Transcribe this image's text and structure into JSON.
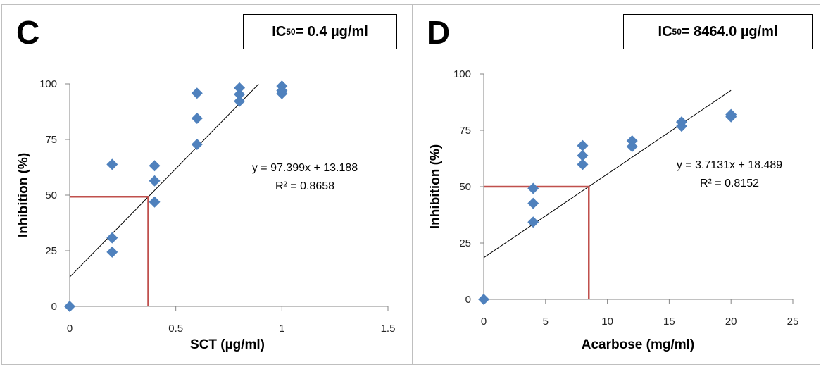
{
  "chart_data": [
    {
      "panel": "C",
      "type": "scatter",
      "ic50": {
        "prefix": "IC",
        "sub": "50",
        "value": " = 0.4 µg/ml"
      },
      "xlabel": "SCT (µg/ml)",
      "ylabel": "Inhibition (%)",
      "xlim": [
        0,
        1.5
      ],
      "ylim": [
        0,
        100
      ],
      "xticks": [
        "0",
        "0.5",
        "1",
        "1.5"
      ],
      "yticks": [
        "0",
        "25",
        "50",
        "75",
        "100"
      ],
      "grid": false,
      "marker_color": "#4f81bd",
      "points": [
        [
          0,
          0
        ],
        [
          0.2,
          63.8
        ],
        [
          0.2,
          30.8
        ],
        [
          0.2,
          24.4
        ],
        [
          0.4,
          63.2
        ],
        [
          0.4,
          56.4
        ],
        [
          0.4,
          46.9
        ],
        [
          0.6,
          95.8
        ],
        [
          0.6,
          84.5
        ],
        [
          0.6,
          72.8
        ],
        [
          0.8,
          98.2
        ],
        [
          0.8,
          95.3
        ],
        [
          0.8,
          92.2
        ],
        [
          1.0,
          99.0
        ],
        [
          1.0,
          97.0
        ],
        [
          1.0,
          95.6
        ]
      ],
      "trendline": {
        "slope": 97.399,
        "intercept": 13.188,
        "x_range": [
          0,
          0.89
        ]
      },
      "equation": "y = 97.399x + 13.188",
      "r2": "R² = 0.8658",
      "ic50_line": {
        "x": 0.37,
        "y": 49.3,
        "color": "#c0504d"
      }
    },
    {
      "panel": "D",
      "type": "scatter",
      "ic50": {
        "prefix": "IC",
        "sub": "50",
        "value": " = 8464.0 µg/ml"
      },
      "xlabel": "Acarbose  (mg/ml)",
      "ylabel": "Inhibition (%)",
      "xlim": [
        0,
        25
      ],
      "ylim": [
        0,
        100
      ],
      "xticks": [
        "0",
        "5",
        "10",
        "15",
        "20",
        "25"
      ],
      "yticks": [
        "0",
        "25",
        "50",
        "75",
        "100"
      ],
      "grid": false,
      "marker_color": "#4f81bd",
      "points": [
        [
          0,
          0
        ],
        [
          4,
          49.2
        ],
        [
          4,
          42.6
        ],
        [
          4,
          34.3
        ],
        [
          8,
          68.2
        ],
        [
          8,
          63.8
        ],
        [
          8,
          59.9
        ],
        [
          12,
          70.3
        ],
        [
          12,
          67.8
        ],
        [
          16,
          78.7
        ],
        [
          16,
          76.8
        ],
        [
          20,
          82.0
        ],
        [
          20,
          81.0
        ]
      ],
      "trendline": {
        "slope": 3.7131,
        "intercept": 18.489,
        "x_range": [
          0,
          20
        ]
      },
      "equation": "y = 3.7131x + 18.489",
      "r2": "R² = 0.8152",
      "ic50_line": {
        "x": 8.5,
        "y": 50,
        "color": "#c0504d"
      }
    }
  ]
}
